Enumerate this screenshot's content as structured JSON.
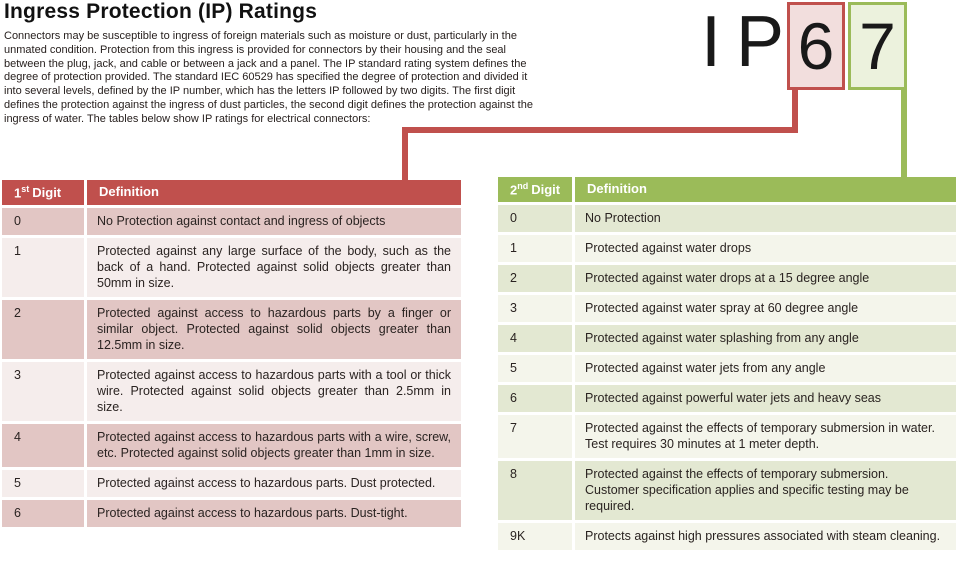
{
  "title": "Ingress Protection (IP) Ratings",
  "intro": "Connectors may be susceptible to ingress of foreign materials such as moisture or dust, particularly in the unmated condition. Protection from this ingress is provided for connectors by their housing and the seal between the plug, jack, and cable or between a jack and a panel. The IP standard rating system defines the degree of protection provided. The standard IEC 60529 has specified the degree of protection and divided it into several levels, defined by the IP number, which has the letters IP followed by two digits. The first digit defines the protection against the ingress of dust particles, the second digit defines the protection against the ingress of water. The tables below show IP ratings for electrical connectors:",
  "ip_example": {
    "letter_i": "I",
    "letter_p": "P",
    "first_digit": "6",
    "second_digit": "7"
  },
  "colors": {
    "red_accent": "#c0504d",
    "red_row_dark": "#e2c6c4",
    "red_row_light": "#f5edec",
    "red_box_fill": "#f2dedd",
    "green_accent": "#9bbb59",
    "green_row_dark": "#e3e8d2",
    "green_row_light": "#f4f5eb",
    "green_box_fill": "#ecf2dd"
  },
  "first_digit_table": {
    "header": {
      "num": "1",
      "sup": "st",
      "rest": "Digit",
      "definition": "Definition"
    },
    "rows": [
      {
        "digit": "0",
        "definition": "No Protection against contact and ingress of objects"
      },
      {
        "digit": "1",
        "definition": "Protected against any large surface of the body, such as the back of a hand. Protected against solid objects greater than 50mm in size."
      },
      {
        "digit": "2",
        "definition": "Protected against access to hazardous parts by a finger or similar object. Protected against solid objects greater than 12.5mm in size."
      },
      {
        "digit": "3",
        "definition": "Protected against access to hazardous parts with a tool or thick wire. Protected against solid objects greater than 2.5mm in size."
      },
      {
        "digit": "4",
        "definition": "Protected against access to hazardous parts with a wire, screw, etc. Protected against solid objects greater than 1mm in size."
      },
      {
        "digit": "5",
        "definition": "Protected against access to hazardous parts. Dust protected."
      },
      {
        "digit": "6",
        "definition": "Protected against access to hazardous parts. Dust-tight."
      }
    ]
  },
  "second_digit_table": {
    "header": {
      "num": "2",
      "sup": "nd",
      "rest": "Digit",
      "definition": "Definition"
    },
    "rows": [
      {
        "digit": "0",
        "definition": "No Protection"
      },
      {
        "digit": "1",
        "definition": "Protected against water drops"
      },
      {
        "digit": "2",
        "definition": "Protected against water drops at a 15 degree angle"
      },
      {
        "digit": "3",
        "definition": "Protected against water spray at 60 degree angle"
      },
      {
        "digit": "4",
        "definition": "Protected against water splashing from any angle"
      },
      {
        "digit": "5",
        "definition": "Protected against water jets from any angle"
      },
      {
        "digit": "6",
        "definition": "Protected against powerful water jets and heavy seas"
      },
      {
        "digit": "7",
        "definition": "Protected against the effects of temporary submersion in water. Test requires 30 minutes at 1 meter depth."
      },
      {
        "digit": "8",
        "definition": "Protected against the effects of temporary submersion. Customer specification applies and specific testing may be required."
      },
      {
        "digit": "9K",
        "definition": "Protects against high pressures associated with steam cleaning."
      }
    ]
  }
}
